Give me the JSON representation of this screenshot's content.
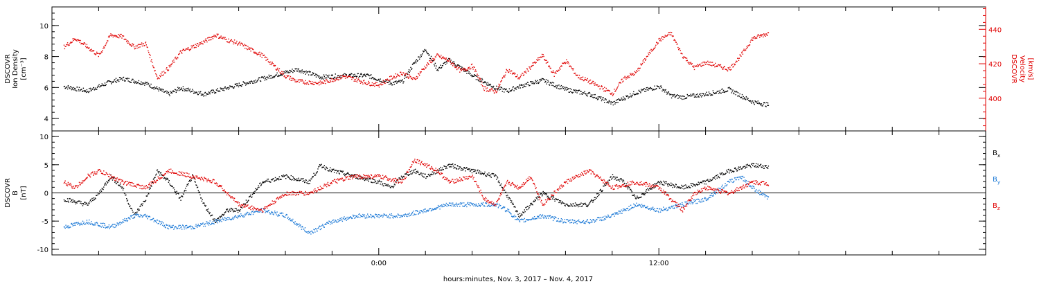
{
  "chart_data": [
    {
      "type": "scatter",
      "panel": "top",
      "left_axis": {
        "label_lines": [
          "DSCOVR",
          "Ion Density",
          "[cm⁻³]"
        ],
        "ylim": [
          3.2,
          11.2
        ],
        "ticks": [
          4,
          6,
          8,
          10
        ],
        "tick_labels": [
          "4",
          "6",
          "8",
          "10"
        ],
        "color": "#000000"
      },
      "right_axis": {
        "label_lines": [
          "DSCOVR",
          "Velocity",
          "[km/s]"
        ],
        "ylim": [
          381,
          453
        ],
        "ticks": [
          400,
          420,
          440
        ],
        "tick_labels": [
          "400",
          "420",
          "440"
        ],
        "color": "#e00000"
      },
      "series": [
        {
          "color": "#000000",
          "axis": "left",
          "x": [
            -13.5,
            -12.5,
            -11.5,
            -11,
            -10,
            -9,
            -8.5,
            -7.5,
            -6.5,
            -5.5,
            -4.5,
            -3.5,
            -2.5,
            -1.5,
            -0.5,
            0.5,
            1,
            1.5,
            2,
            2.5,
            3,
            4,
            5,
            5.5,
            6,
            7,
            8,
            9,
            10,
            11,
            12,
            12.5,
            13,
            14,
            15,
            16,
            16.7
          ],
          "y": [
            6.1,
            5.8,
            6.4,
            6.6,
            6.3,
            5.6,
            6.0,
            5.6,
            6.0,
            6.4,
            6.8,
            7.2,
            6.7,
            6.8,
            6.8,
            6.3,
            6.4,
            7.6,
            8.5,
            7.2,
            7.8,
            6.8,
            6.0,
            5.8,
            6.1,
            6.5,
            5.9,
            5.6,
            5.0,
            5.7,
            6.1,
            5.5,
            5.4,
            5.6,
            5.9,
            5.1,
            4.9
          ]
        },
        {
          "color": "#e00000",
          "axis": "right",
          "x": [
            -13.5,
            -13,
            -12,
            -11.5,
            -11,
            -10.5,
            -10,
            -9.5,
            -9,
            -8.5,
            -7.5,
            -7,
            -6.5,
            -6,
            -5,
            -4,
            -3.5,
            -2.5,
            -1.5,
            -0.5,
            0,
            0.5,
            1,
            1.5,
            2,
            2.5,
            3,
            3.5,
            4,
            4.5,
            5,
            5.5,
            6,
            7,
            7.5,
            8,
            8.5,
            9,
            10,
            10.5,
            11,
            11.5,
            12,
            12.5,
            13,
            13.5,
            14,
            15,
            15.5,
            16,
            16.7
          ],
          "y": [
            430,
            435,
            425,
            437,
            436,
            430,
            432,
            412,
            418,
            427,
            433,
            437,
            434,
            432,
            425,
            413,
            410,
            409,
            413,
            409,
            408,
            412,
            415,
            411,
            419,
            425,
            422,
            416,
            419,
            406,
            404,
            417,
            412,
            425,
            414,
            422,
            413,
            410,
            403,
            412,
            415,
            425,
            434,
            438,
            425,
            418,
            421,
            417,
            425,
            435,
            438
          ]
        }
      ]
    },
    {
      "type": "scatter",
      "panel": "bottom",
      "left_axis": {
        "label_lines": [
          "DSCOVR",
          "B",
          "[nT]"
        ],
        "ylim": [
          -11,
          11
        ],
        "ticks": [
          -10,
          -5,
          0,
          5,
          10
        ],
        "tick_labels": [
          "-10",
          "-5",
          "0",
          "5",
          "10"
        ]
      },
      "zero_line": true,
      "series": [
        {
          "name": "Bx",
          "legend_base": "B",
          "legend_sub": "x",
          "color": "#000000",
          "x": [
            -13.5,
            -12.5,
            -12,
            -11.5,
            -11,
            -10.5,
            -10,
            -9.5,
            -9,
            -8.5,
            -8,
            -7.5,
            -7,
            -6.5,
            -6,
            -5,
            -4,
            -3,
            -2.5,
            -2,
            -1,
            0,
            0.5,
            1,
            1.5,
            2,
            3,
            4,
            5,
            6,
            7,
            8,
            9,
            10,
            10.5,
            11,
            12,
            13,
            14,
            15,
            16,
            16.7
          ],
          "y": [
            -1,
            -2,
            0,
            3,
            1,
            -4,
            -1,
            4,
            2,
            -1,
            3,
            -2,
            -5,
            -3,
            -3,
            2,
            3,
            2,
            5,
            4,
            3,
            2,
            1,
            3,
            4,
            3,
            5,
            4,
            3,
            -4,
            0,
            -2,
            -2,
            3,
            2,
            -1,
            2,
            1,
            2,
            4,
            5,
            4.7
          ]
        },
        {
          "name": "By",
          "legend_base": "B",
          "legend_sub": "y",
          "color": "#1a78d6",
          "x": [
            -13.5,
            -12.5,
            -11.5,
            -11,
            -10.5,
            -10,
            -9,
            -8,
            -7,
            -6,
            -5,
            -4,
            -3,
            -2,
            -1,
            0,
            1,
            2,
            3,
            4,
            5,
            5.5,
            6,
            7,
            8,
            9,
            10,
            11,
            12,
            13,
            14,
            15,
            15.5,
            16,
            16.7
          ],
          "y": [
            -6,
            -5,
            -6,
            -5,
            -4,
            -4,
            -6,
            -6,
            -5,
            -4,
            -3,
            -4,
            -7,
            -5,
            -4,
            -4,
            -4,
            -3,
            -2,
            -2,
            -2,
            -3,
            -5,
            -4,
            -5,
            -5,
            -4,
            -2,
            -3,
            -2,
            -1,
            2,
            3,
            1,
            -1
          ]
        },
        {
          "name": "Bz",
          "legend_base": "B",
          "legend_sub": "z",
          "color": "#e00000",
          "x": [
            -13.5,
            -13,
            -12.5,
            -12,
            -11,
            -10,
            -9,
            -8,
            -7,
            -6,
            -5,
            -4,
            -3,
            -2,
            -1,
            0,
            1,
            1.5,
            2,
            2.5,
            3,
            4,
            4.5,
            5,
            5.5,
            6,
            6.5,
            7,
            8,
            9,
            10,
            11,
            12,
            12.5,
            13,
            13.5,
            14,
            15,
            15.5,
            16,
            16.7
          ],
          "y": [
            2,
            1,
            3,
            4,
            2,
            1,
            4,
            3,
            2,
            -2,
            -3,
            0,
            0,
            2,
            3,
            3,
            2,
            6,
            5,
            4,
            2,
            3,
            -1,
            -2,
            2,
            1,
            3,
            -2,
            2,
            4,
            1,
            2,
            1,
            -1,
            -3,
            0,
            1,
            0,
            1,
            2,
            1.7
          ]
        }
      ]
    }
  ],
  "x_axis": {
    "range_hours": [
      -14,
      26
    ],
    "major_ticks": [
      0,
      12
    ],
    "major_tick_labels": [
      "0:00",
      "12:00"
    ],
    "minor_step_hours": 2,
    "label": "hours:minutes, Nov.  3, 2017 – Nov.  4, 2017"
  }
}
